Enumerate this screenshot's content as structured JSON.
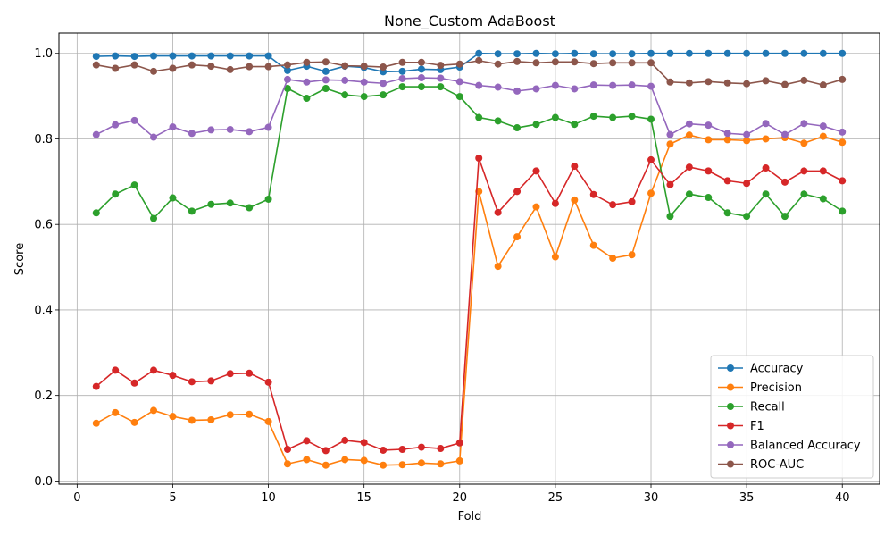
{
  "chart_data": {
    "type": "line",
    "title": "None_Custom AdaBoost",
    "xlabel": "Fold",
    "ylabel": "Score",
    "xlim": [
      -0.95,
      41.95
    ],
    "ylim": [
      -0.0075,
      1.0475
    ],
    "xticks": [
      0,
      5,
      10,
      15,
      20,
      25,
      30,
      35,
      40
    ],
    "yticks": [
      0.0,
      0.2,
      0.4,
      0.6,
      0.8,
      1.0
    ],
    "xtick_labels": [
      "0",
      "5",
      "10",
      "15",
      "20",
      "25",
      "30",
      "35",
      "40"
    ],
    "ytick_labels": [
      "0.0",
      "0.2",
      "0.4",
      "0.6",
      "0.8",
      "1.0"
    ],
    "grid": true,
    "legend_position": "lower-right",
    "x": [
      1,
      2,
      3,
      4,
      5,
      6,
      7,
      8,
      9,
      10,
      11,
      12,
      13,
      14,
      15,
      16,
      17,
      18,
      19,
      20,
      21,
      22,
      23,
      24,
      25,
      26,
      27,
      28,
      29,
      30,
      31,
      32,
      33,
      34,
      35,
      36,
      37,
      38,
      39,
      40
    ],
    "series": [
      {
        "name": "Accuracy",
        "color": "#1f77b4",
        "values": [
          0.993,
          0.994,
          0.993,
          0.994,
          0.994,
          0.994,
          0.994,
          0.994,
          0.994,
          0.994,
          0.96,
          0.97,
          0.958,
          0.97,
          0.967,
          0.957,
          0.958,
          0.963,
          0.962,
          0.968,
          1.0,
          0.999,
          0.999,
          1.0,
          0.999,
          1.0,
          0.999,
          0.999,
          0.999,
          1.0,
          1.0,
          1.0,
          1.0,
          1.0,
          1.0,
          1.0,
          1.0,
          1.0,
          1.0,
          1.0
        ]
      },
      {
        "name": "Precision",
        "color": "#ff7f0e",
        "values": [
          0.135,
          0.16,
          0.137,
          0.165,
          0.151,
          0.142,
          0.143,
          0.155,
          0.156,
          0.139,
          0.04,
          0.05,
          0.037,
          0.05,
          0.048,
          0.037,
          0.038,
          0.042,
          0.04,
          0.047,
          0.677,
          0.502,
          0.571,
          0.641,
          0.524,
          0.657,
          0.551,
          0.521,
          0.529,
          0.673,
          0.788,
          0.809,
          0.798,
          0.798,
          0.796,
          0.8,
          0.803,
          0.79,
          0.806,
          0.792
        ]
      },
      {
        "name": "Recall",
        "color": "#2ca02c",
        "values": [
          0.627,
          0.671,
          0.692,
          0.614,
          0.662,
          0.631,
          0.647,
          0.65,
          0.639,
          0.659,
          0.918,
          0.895,
          0.918,
          0.903,
          0.899,
          0.903,
          0.922,
          0.922,
          0.922,
          0.899,
          0.85,
          0.842,
          0.826,
          0.834,
          0.85,
          0.834,
          0.853,
          0.85,
          0.853,
          0.846,
          0.619,
          0.671,
          0.663,
          0.627,
          0.619,
          0.671,
          0.619,
          0.671,
          0.66,
          0.631
        ]
      },
      {
        "name": "F1",
        "color": "#d62728",
        "values": [
          0.221,
          0.259,
          0.229,
          0.259,
          0.247,
          0.232,
          0.234,
          0.251,
          0.252,
          0.231,
          0.074,
          0.094,
          0.071,
          0.095,
          0.09,
          0.072,
          0.074,
          0.079,
          0.076,
          0.089,
          0.755,
          0.628,
          0.677,
          0.725,
          0.649,
          0.736,
          0.67,
          0.646,
          0.653,
          0.751,
          0.693,
          0.734,
          0.725,
          0.702,
          0.696,
          0.732,
          0.699,
          0.725,
          0.725,
          0.702
        ]
      },
      {
        "name": "Balanced Accuracy",
        "color": "#9467bd",
        "values": [
          0.81,
          0.833,
          0.843,
          0.804,
          0.828,
          0.813,
          0.821,
          0.822,
          0.817,
          0.827,
          0.939,
          0.933,
          0.938,
          0.937,
          0.933,
          0.93,
          0.941,
          0.943,
          0.942,
          0.934,
          0.925,
          0.921,
          0.912,
          0.917,
          0.925,
          0.917,
          0.926,
          0.925,
          0.926,
          0.923,
          0.81,
          0.835,
          0.832,
          0.813,
          0.81,
          0.836,
          0.81,
          0.836,
          0.83,
          0.816
        ]
      },
      {
        "name": "ROC-AUC",
        "color": "#8c564b",
        "values": [
          0.973,
          0.965,
          0.973,
          0.958,
          0.965,
          0.973,
          0.97,
          0.962,
          0.969,
          0.969,
          0.973,
          0.979,
          0.98,
          0.971,
          0.97,
          0.968,
          0.979,
          0.979,
          0.972,
          0.975,
          0.983,
          0.975,
          0.981,
          0.978,
          0.98,
          0.98,
          0.976,
          0.978,
          0.978,
          0.978,
          0.933,
          0.931,
          0.934,
          0.931,
          0.929,
          0.936,
          0.927,
          0.937,
          0.926,
          0.939
        ]
      }
    ]
  }
}
